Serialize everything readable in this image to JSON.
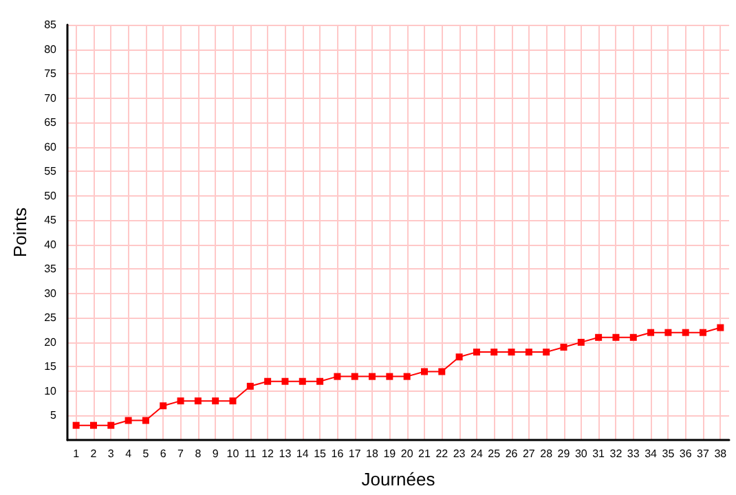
{
  "chart_data": {
    "type": "line",
    "xlabel": "Journées",
    "ylabel": "Points",
    "x": [
      1,
      2,
      3,
      4,
      5,
      6,
      7,
      8,
      9,
      10,
      11,
      12,
      13,
      14,
      15,
      16,
      17,
      18,
      19,
      20,
      21,
      22,
      23,
      24,
      25,
      26,
      27,
      28,
      29,
      30,
      31,
      32,
      33,
      34,
      35,
      36,
      37,
      38
    ],
    "xlim": [
      0.5,
      38.5
    ],
    "xticks": [
      1,
      2,
      3,
      4,
      5,
      6,
      7,
      8,
      9,
      10,
      11,
      12,
      13,
      14,
      15,
      16,
      17,
      18,
      19,
      20,
      21,
      22,
      23,
      24,
      25,
      26,
      27,
      28,
      29,
      30,
      31,
      32,
      33,
      34,
      35,
      36,
      37,
      38
    ],
    "series": [
      {
        "color": "#ff0000",
        "values": [
          3,
          3,
          3,
          4,
          4,
          7,
          8,
          8,
          8,
          8,
          11,
          12,
          12,
          12,
          12,
          13,
          13,
          13,
          13,
          13,
          14,
          14,
          17,
          18,
          18,
          18,
          18,
          18,
          19,
          20,
          21,
          21,
          21,
          22,
          22,
          22,
          22,
          23
        ]
      }
    ],
    "ylim": [
      0,
      85
    ],
    "yticks": [
      5,
      10,
      15,
      20,
      25,
      30,
      35,
      40,
      45,
      50,
      55,
      60,
      65,
      70,
      75,
      80,
      85
    ],
    "grid": true,
    "marker": "square",
    "line_style": "solid"
  }
}
